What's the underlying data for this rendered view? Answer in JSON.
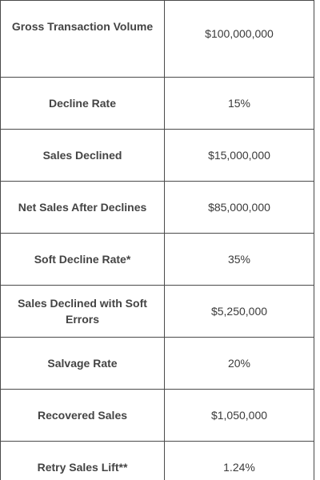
{
  "table": {
    "rows": [
      {
        "label": "Gross Transaction Volume",
        "value": "$100,000,000"
      },
      {
        "label": "Decline Rate",
        "value": "15%"
      },
      {
        "label": "Sales Declined",
        "value": "$15,000,000"
      },
      {
        "label": "Net Sales After Declines",
        "value": "$85,000,000"
      },
      {
        "label": "Soft Decline Rate*",
        "value": "35%"
      },
      {
        "label": "Sales Declined with Soft Errors",
        "value": "$5,250,000"
      },
      {
        "label": "Salvage Rate",
        "value": "20%"
      },
      {
        "label": "Recovered Sales",
        "value": "$1,050,000"
      },
      {
        "label": "Retry Sales Lift**",
        "value": "1.24%"
      }
    ]
  }
}
